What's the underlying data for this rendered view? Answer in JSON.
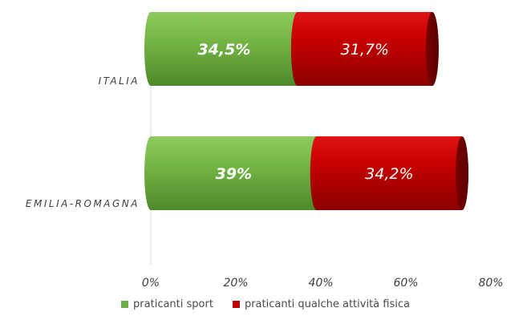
{
  "chart_data": {
    "type": "bar",
    "orientation": "horizontal",
    "stacked": true,
    "categories": [
      "ITALIA",
      "EMILIA-ROMAGNA"
    ],
    "series": [
      {
        "name": "praticanti sport",
        "values": [
          34.5,
          39.0
        ],
        "labels": [
          "34,5%",
          "39%"
        ],
        "color": "#70ad47"
      },
      {
        "name": "praticanti qualche attività fisica",
        "values": [
          31.7,
          34.2
        ],
        "labels": [
          "31,7%",
          "34,2%"
        ],
        "color": "#c00000"
      }
    ],
    "xlim": [
      0,
      80
    ],
    "xticks": [
      "0%",
      "20%",
      "40%",
      "60%",
      "80%"
    ],
    "xtick_values": [
      0,
      20,
      40,
      60,
      80
    ],
    "grid": false,
    "legend_position": "bottom"
  }
}
